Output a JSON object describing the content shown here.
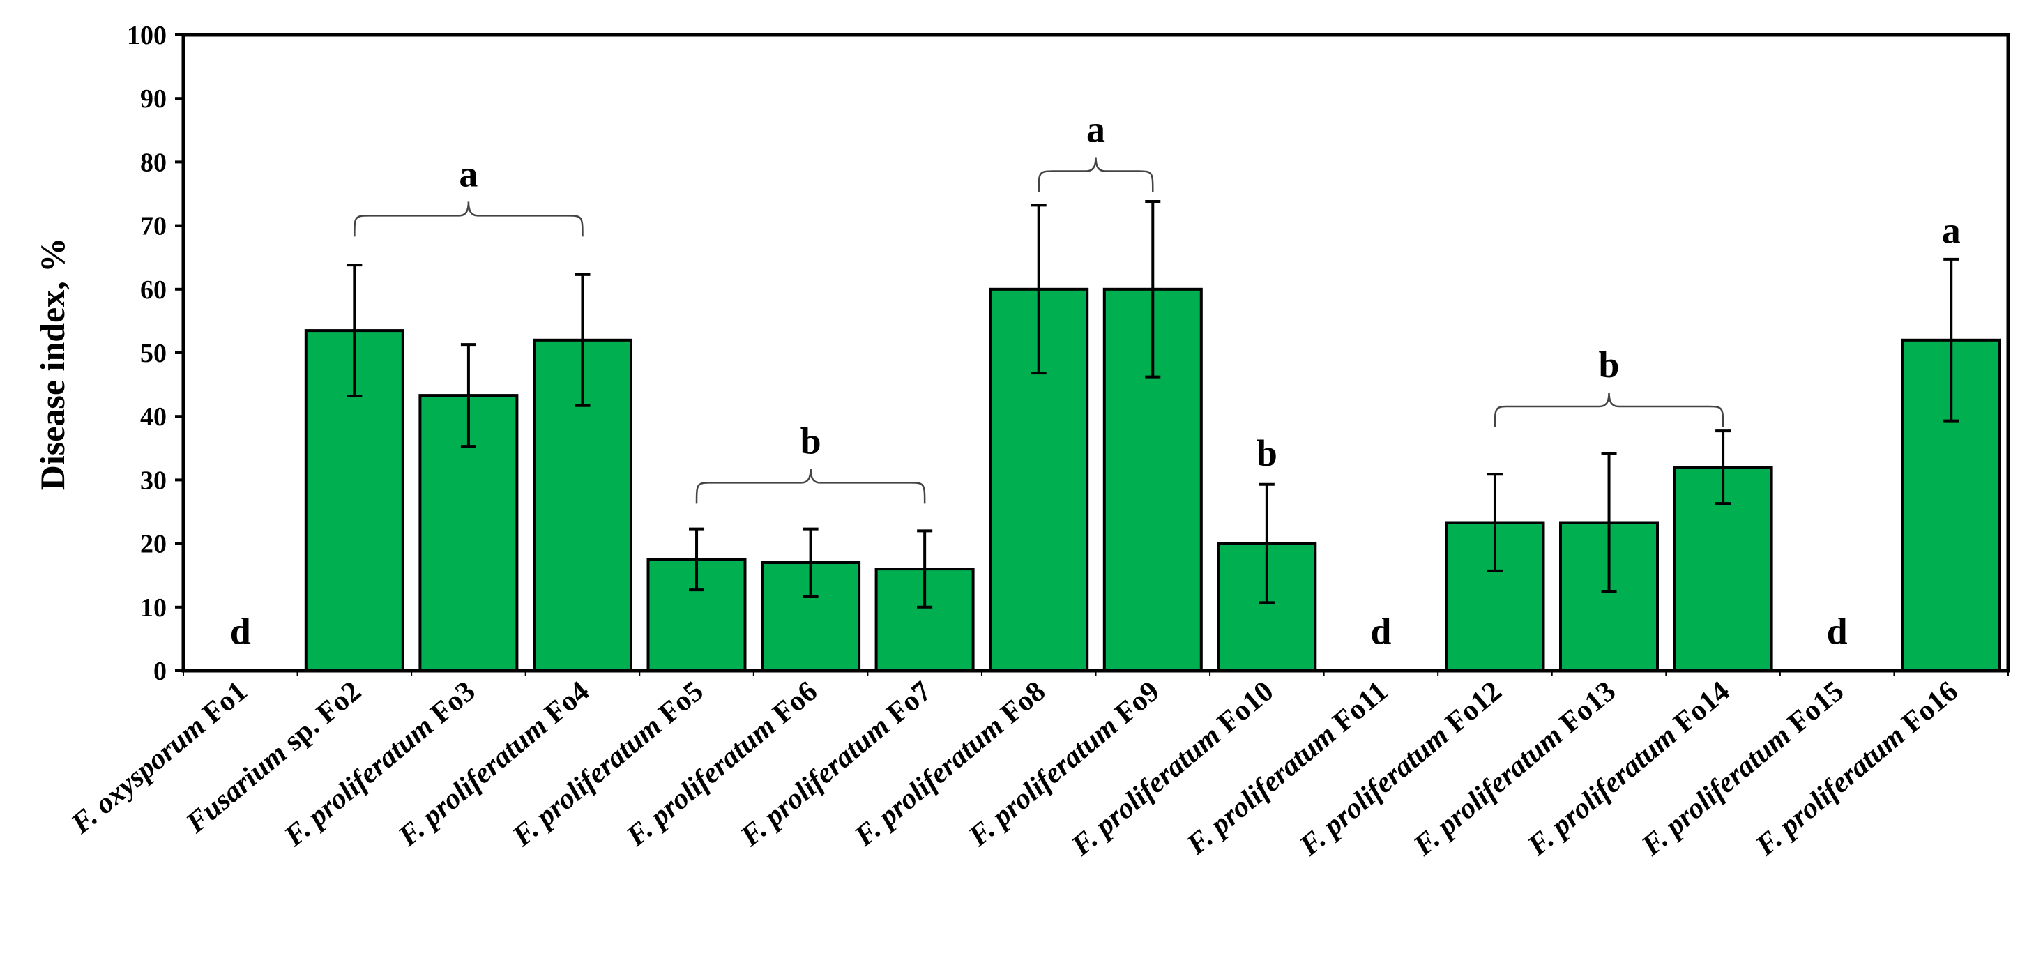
{
  "chart_data": {
    "type": "bar",
    "title": "",
    "xlabel": "",
    "ylabel": "Disease index, %",
    "ylim": [
      0,
      100
    ],
    "yticks": [
      0,
      10,
      20,
      30,
      40,
      50,
      60,
      70,
      80,
      90,
      100
    ],
    "grid": false,
    "bar_color": "#00B050",
    "categories": [
      {
        "italic": "F. oxysporum",
        "plain": " Fo1"
      },
      {
        "italic": "Fusarium",
        "plain": " sp. Fo2"
      },
      {
        "italic": "F. proliferatum",
        "plain": " Fo3"
      },
      {
        "italic": "F. proliferatum",
        "plain": " Fo4"
      },
      {
        "italic": "F. proliferatum",
        "plain": " Fo5"
      },
      {
        "italic": "F. proliferatum",
        "plain": " Fo6"
      },
      {
        "italic": "F. proliferatum",
        "plain": " Fo7"
      },
      {
        "italic": "F. proliferatum",
        "plain": " Fo8"
      },
      {
        "italic": "F. proliferatum",
        "plain": " Fo9"
      },
      {
        "italic": "F. proliferatum",
        "plain": " Fo10"
      },
      {
        "italic": "F. proliferatum",
        "plain": " Fo11"
      },
      {
        "italic": "F. proliferatum",
        "plain": " Fo12"
      },
      {
        "italic": "F. proliferatum",
        "plain": " Fo13"
      },
      {
        "italic": "F. proliferatum",
        "plain": " Fo14"
      },
      {
        "italic": "F. proliferatum",
        "plain": " Fo15"
      },
      {
        "italic": "F. proliferatum",
        "plain": " Fo16"
      }
    ],
    "values": [
      0,
      53.5,
      43.3,
      52,
      17.5,
      17,
      16,
      60,
      60,
      20,
      0,
      23.3,
      23.3,
      32,
      0,
      52
    ],
    "errors": [
      0,
      10.3,
      8,
      10.3,
      4.8,
      5.3,
      6,
      13.2,
      13.8,
      9.3,
      0,
      7.6,
      10.8,
      5.7,
      0,
      12.7
    ],
    "significance": [
      {
        "label": "d",
        "start": 0,
        "end": 0,
        "bracket": false,
        "y": 6
      },
      {
        "label": "a",
        "start": 1,
        "end": 3,
        "bracket": true,
        "y": 72
      },
      {
        "label": "b",
        "start": 4,
        "end": 6,
        "bracket": true,
        "y": 30
      },
      {
        "label": "a",
        "start": 7,
        "end": 8,
        "bracket": true,
        "y": 79
      },
      {
        "label": "b",
        "start": 9,
        "end": 9,
        "bracket": false,
        "y": 34
      },
      {
        "label": "d",
        "start": 10,
        "end": 10,
        "bracket": false,
        "y": 6
      },
      {
        "label": "b",
        "start": 11,
        "end": 13,
        "bracket": true,
        "y": 42
      },
      {
        "label": "d",
        "start": 14,
        "end": 14,
        "bracket": false,
        "y": 6
      },
      {
        "label": "a",
        "start": 15,
        "end": 15,
        "bracket": false,
        "y": 69
      }
    ]
  }
}
